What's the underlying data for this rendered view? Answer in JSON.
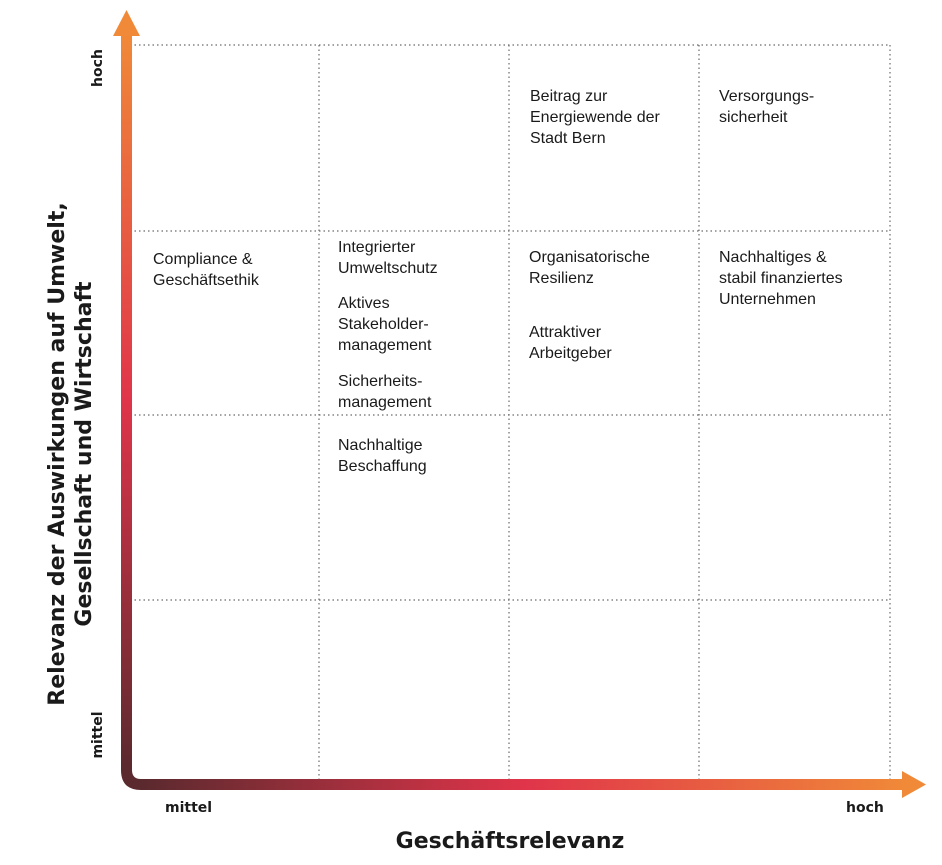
{
  "axes": {
    "x_title": "Geschäftsrelevanz",
    "y_title_line1": "Relevanz der Auswirkungen auf Umwelt,",
    "y_title_line2": "Gesellschaft und Wirtschaft",
    "x_low": "mittel",
    "x_high": "hoch",
    "y_low": "mittel",
    "y_high": "hoch"
  },
  "cells": {
    "c3_r1": "Beitrag zur\nEnergiewende der\nStadt Bern",
    "c4_r1": "Versorgungs-\nsicherheit",
    "c1_r2": "Compliance &\nGeschäftsethik",
    "c2_r2a": "Integrierter\nUmweltschutz",
    "c2_r2b": "Aktives\nStakeholder-\nmanagement",
    "c2_r2c": "Sicherheits-\nmanagement",
    "c2_r3": "Nachhaltige\nBeschaffung",
    "c3_r2a": "Organisatorische\nResilienz",
    "c3_r2b": "Attraktiver\nArbeitgeber",
    "c4_r2": "Nachhaltiges &\nstabil finanziertes\nUnternehmen"
  },
  "colors": {
    "axis_start": "#5a2a2e",
    "axis_mid": "#e0344a",
    "axis_end": "#f08a38",
    "grid": "#6a6a6a"
  }
}
